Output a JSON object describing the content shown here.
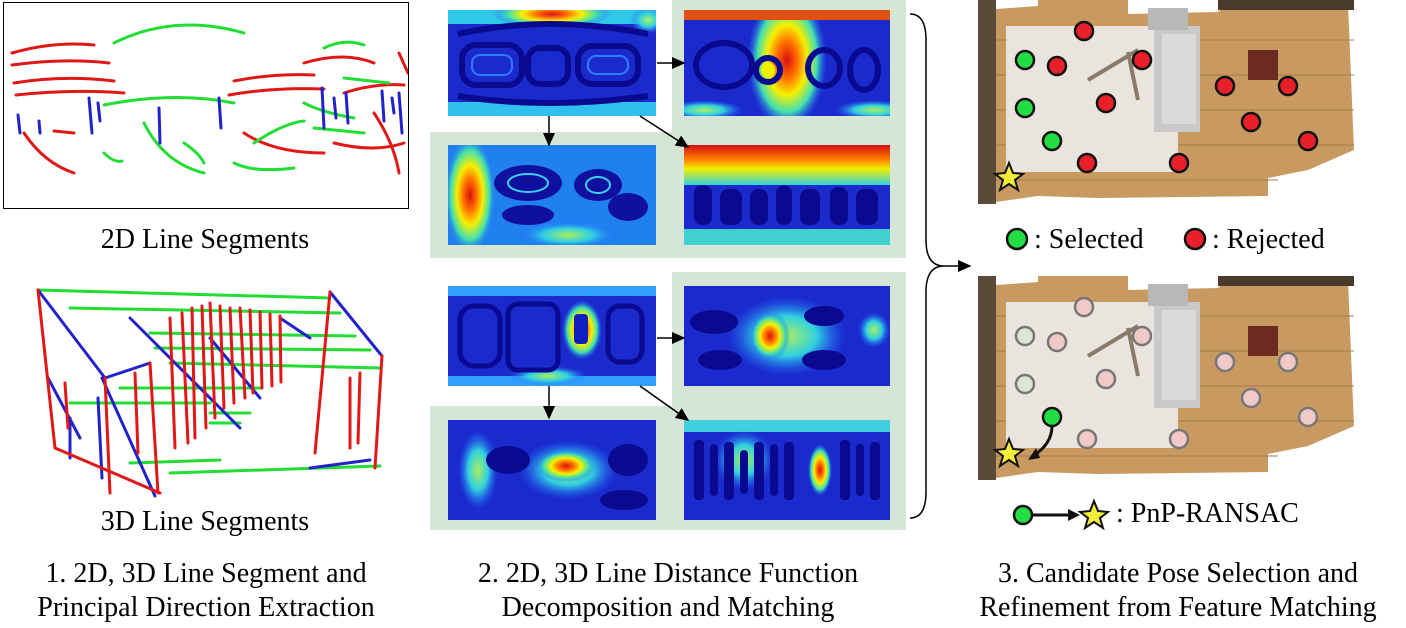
{
  "col1": {
    "caption_2d": "2D Line Segments",
    "caption_3d": "3D Line Segments",
    "step_line1": "1. 2D, 3D Line Segment and",
    "step_line2": "Principal Direction Extraction"
  },
  "col2": {
    "step_line1": "2. 2D, 3D Line Distance Function",
    "step_line2": "Decomposition and Matching"
  },
  "col3": {
    "legend_selected": ": Selected",
    "legend_rejected": ": Rejected",
    "legend_pnp": ": PnP-RANSAC",
    "step_line1": "3. Candidate Pose Selection and",
    "step_line2": "Refinement from Feature Matching"
  },
  "colors": {
    "selected": "#22dd44",
    "rejected": "#e8202a",
    "selected_faded": "#d8e8d4",
    "rejected_faded": "#f1c9c6",
    "star": "#f2ec3a",
    "panel_bg": "#d6e6d6",
    "line_red": "#e01818",
    "line_green": "#22dd33",
    "line_blue": "#2222cc"
  }
}
